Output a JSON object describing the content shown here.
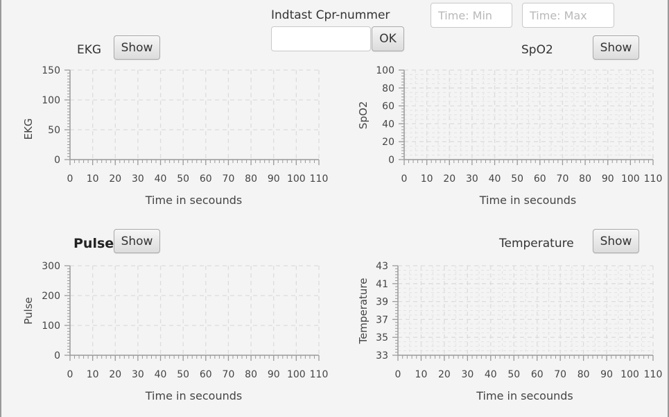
{
  "cpr": {
    "label": "Indtast Cpr-nummer",
    "value": "",
    "ok_label": "OK"
  },
  "time_filter": {
    "min_placeholder": "Time: Min",
    "max_placeholder": "Time: Max"
  },
  "panels": {
    "ekg": {
      "title": "EKG",
      "show_label": "Show"
    },
    "spo2": {
      "title": "SpO2",
      "show_label": "Show"
    },
    "pulse": {
      "title": "Pulse",
      "show_label": "Show"
    },
    "temperature": {
      "title": "Temperature",
      "show_label": "Show"
    }
  },
  "chart_data": [
    {
      "id": "ekg",
      "type": "line",
      "title": "",
      "xlabel": "Time in secounds",
      "ylabel": "EKG",
      "xlim": [
        0,
        110
      ],
      "ylim": [
        0,
        150
      ],
      "xticks": [
        0,
        10,
        20,
        30,
        40,
        50,
        60,
        70,
        80,
        90,
        100,
        110
      ],
      "yticks": [
        0,
        50,
        100,
        150
      ],
      "series": [],
      "grid": true
    },
    {
      "id": "spo2",
      "type": "line",
      "title": "",
      "xlabel": "Time in secounds",
      "ylabel": "SpO2",
      "xlim": [
        0,
        110
      ],
      "ylim": [
        0,
        100
      ],
      "xticks": [
        0,
        10,
        20,
        30,
        40,
        50,
        60,
        70,
        80,
        90,
        100,
        110
      ],
      "yticks": [
        0,
        20,
        40,
        60,
        80,
        100
      ],
      "series": [],
      "grid": true
    },
    {
      "id": "pulse",
      "type": "line",
      "title": "",
      "xlabel": "Time in secounds",
      "ylabel": "Pulse",
      "xlim": [
        0,
        110
      ],
      "ylim": [
        0,
        300
      ],
      "xticks": [
        0,
        10,
        20,
        30,
        40,
        50,
        60,
        70,
        80,
        90,
        100,
        110
      ],
      "yticks": [
        0,
        100,
        200,
        300
      ],
      "series": [],
      "grid": true
    },
    {
      "id": "temperature",
      "type": "line",
      "title": "",
      "xlabel": "Time in secounds",
      "ylabel": "Temperature",
      "xlim": [
        0,
        110
      ],
      "ylim": [
        33,
        43
      ],
      "xticks": [
        0,
        10,
        20,
        30,
        40,
        50,
        60,
        70,
        80,
        90,
        100,
        110
      ],
      "yticks": [
        33,
        35,
        37,
        39,
        41,
        43
      ],
      "series": [],
      "grid": true
    }
  ]
}
